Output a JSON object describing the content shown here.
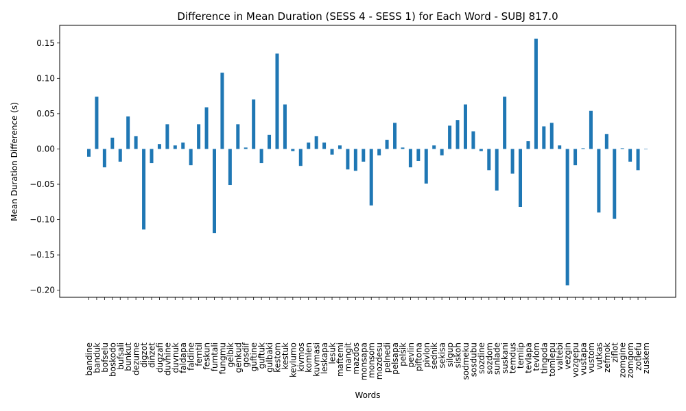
{
  "chart_data": {
    "type": "bar",
    "title": "Difference in Mean Duration (SESS 4 - SESS 1) for Each Word - SUBJ 817.0",
    "xlabel": "Words",
    "ylabel": "Mean Duration Difference (s)",
    "ylim": [
      -0.21,
      0.175
    ],
    "yticks": [
      -0.2,
      -0.15,
      -0.1,
      -0.05,
      0.0,
      0.05,
      0.1,
      0.15
    ],
    "ytick_labels": [
      "−0.20",
      "−0.15",
      "−0.10",
      "−0.05",
      "0.00",
      "0.05",
      "0.10",
      "0.15"
    ],
    "grid": false,
    "bar_color": "#1f77b4",
    "categories": [
      "bandine",
      "banduk",
      "bofselu",
      "boskodo",
      "bufsali",
      "bunkut",
      "dezume",
      "digzot",
      "dinzet",
      "dugzafi",
      "duvhine",
      "duvnuk",
      "faldapa",
      "faldine",
      "femtil",
      "feskun",
      "fumtali",
      "fungmu",
      "gelbik",
      "genkud",
      "gosdif",
      "guftine",
      "guftuk",
      "gulbaki",
      "kestom",
      "kestuk",
      "kevlumo",
      "kivmos",
      "komlen",
      "kuvmasi",
      "leskapa",
      "lesuk",
      "maftemi",
      "mangit",
      "mazdos",
      "monsapa",
      "monsom",
      "mozdesu",
      "pelnedi",
      "pelsapa",
      "pelsik",
      "pevlin",
      "piftona",
      "pivlon",
      "sednik",
      "sekisa",
      "silgup",
      "siskoh",
      "sodmeku",
      "sosdubu",
      "sozdine",
      "sozdom",
      "sunlade",
      "suskani",
      "temdus",
      "temlip",
      "tevlapa",
      "tevlom",
      "tingoda",
      "tomlepu",
      "valtebi",
      "vezgin",
      "vozgepu",
      "vustapa",
      "vustom",
      "vutkas",
      "zefmok",
      "ziflot",
      "zomgine",
      "zomgom",
      "zotlefu",
      "zuskem"
    ],
    "values": [
      -0.011,
      0.074,
      -0.026,
      0.016,
      -0.018,
      0.046,
      0.018,
      -0.114,
      -0.02,
      0.007,
      0.035,
      0.005,
      0.009,
      -0.023,
      0.035,
      0.059,
      -0.119,
      0.108,
      -0.051,
      0.035,
      0.002,
      0.07,
      -0.02,
      0.02,
      0.135,
      0.063,
      -0.003,
      -0.024,
      0.009,
      0.018,
      0.009,
      -0.008,
      0.005,
      -0.029,
      -0.031,
      -0.018,
      -0.08,
      -0.009,
      0.013,
      0.037,
      0.002,
      -0.026,
      -0.017,
      -0.049,
      0.005,
      -0.009,
      0.033,
      0.041,
      0.063,
      0.025,
      -0.003,
      -0.03,
      -0.059,
      0.074,
      -0.035,
      -0.082,
      0.011,
      0.156,
      0.032,
      0.037,
      0.005,
      -0.193,
      -0.023,
      0.001,
      0.054,
      -0.09,
      0.021,
      -0.099,
      0.001,
      -0.018,
      -0.03,
      0.0
    ]
  }
}
